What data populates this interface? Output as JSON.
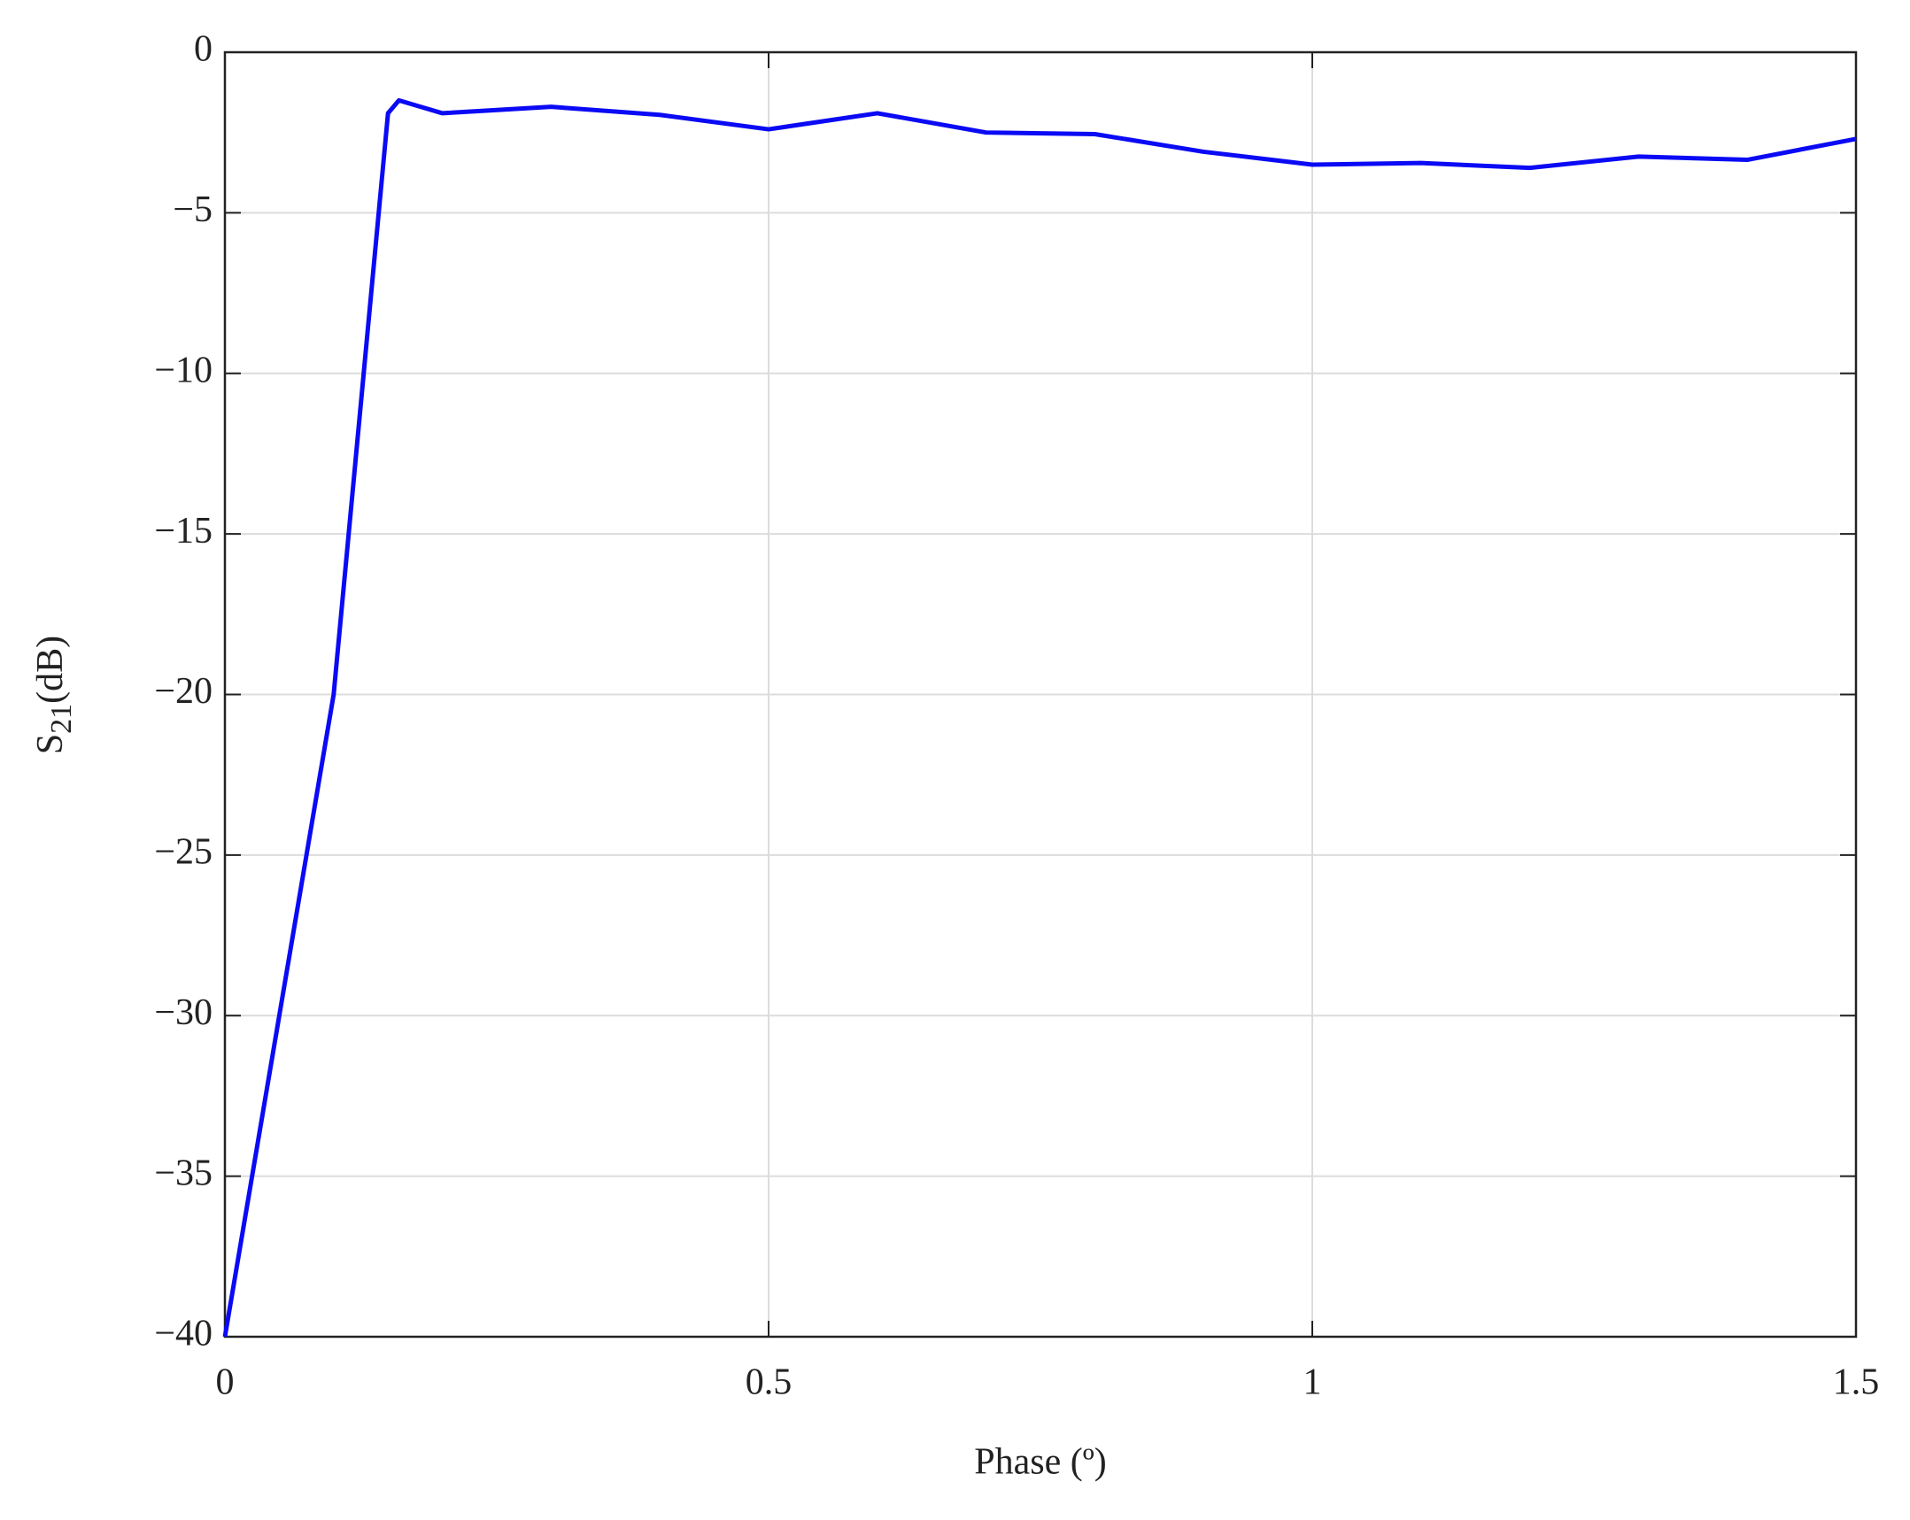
{
  "chart_data": {
    "type": "line",
    "xlabel": "Phase (º)",
    "ylabel": {
      "main": "S",
      "subscript": "21",
      "suffix": "(dB)"
    },
    "x": [
      0,
      0.1,
      0.15,
      0.16,
      0.2,
      0.3,
      0.4,
      0.5,
      0.6,
      0.7,
      0.8,
      0.9,
      1.0,
      1.1,
      1.2,
      1.3,
      1.4,
      1.5
    ],
    "series": [
      {
        "color": "#0a0af5",
        "values": [
          -40,
          -20,
          -1.9,
          -1.5,
          -1.9,
          -1.7,
          -1.95,
          -2.4,
          -1.9,
          -2.5,
          -2.55,
          -3.1,
          -3.5,
          -3.45,
          -3.6,
          -3.25,
          -3.35,
          -2.7
        ]
      }
    ],
    "xlim": [
      0,
      1.5
    ],
    "xticks": [
      0,
      0.5,
      1,
      1.5
    ],
    "ylim": [
      -40,
      0
    ],
    "yticks": [
      {
        "value": -40,
        "label": "−40"
      },
      {
        "value": -35,
        "label": "−35"
      },
      {
        "value": -30,
        "label": "−30"
      },
      {
        "value": -25,
        "label": "−25"
      },
      {
        "value": -20,
        "label": "−20"
      },
      {
        "value": -15,
        "label": "−15"
      },
      {
        "value": -10,
        "label": "−10"
      },
      {
        "value": -5,
        "label": "−5"
      },
      0
    ],
    "grid": true
  }
}
